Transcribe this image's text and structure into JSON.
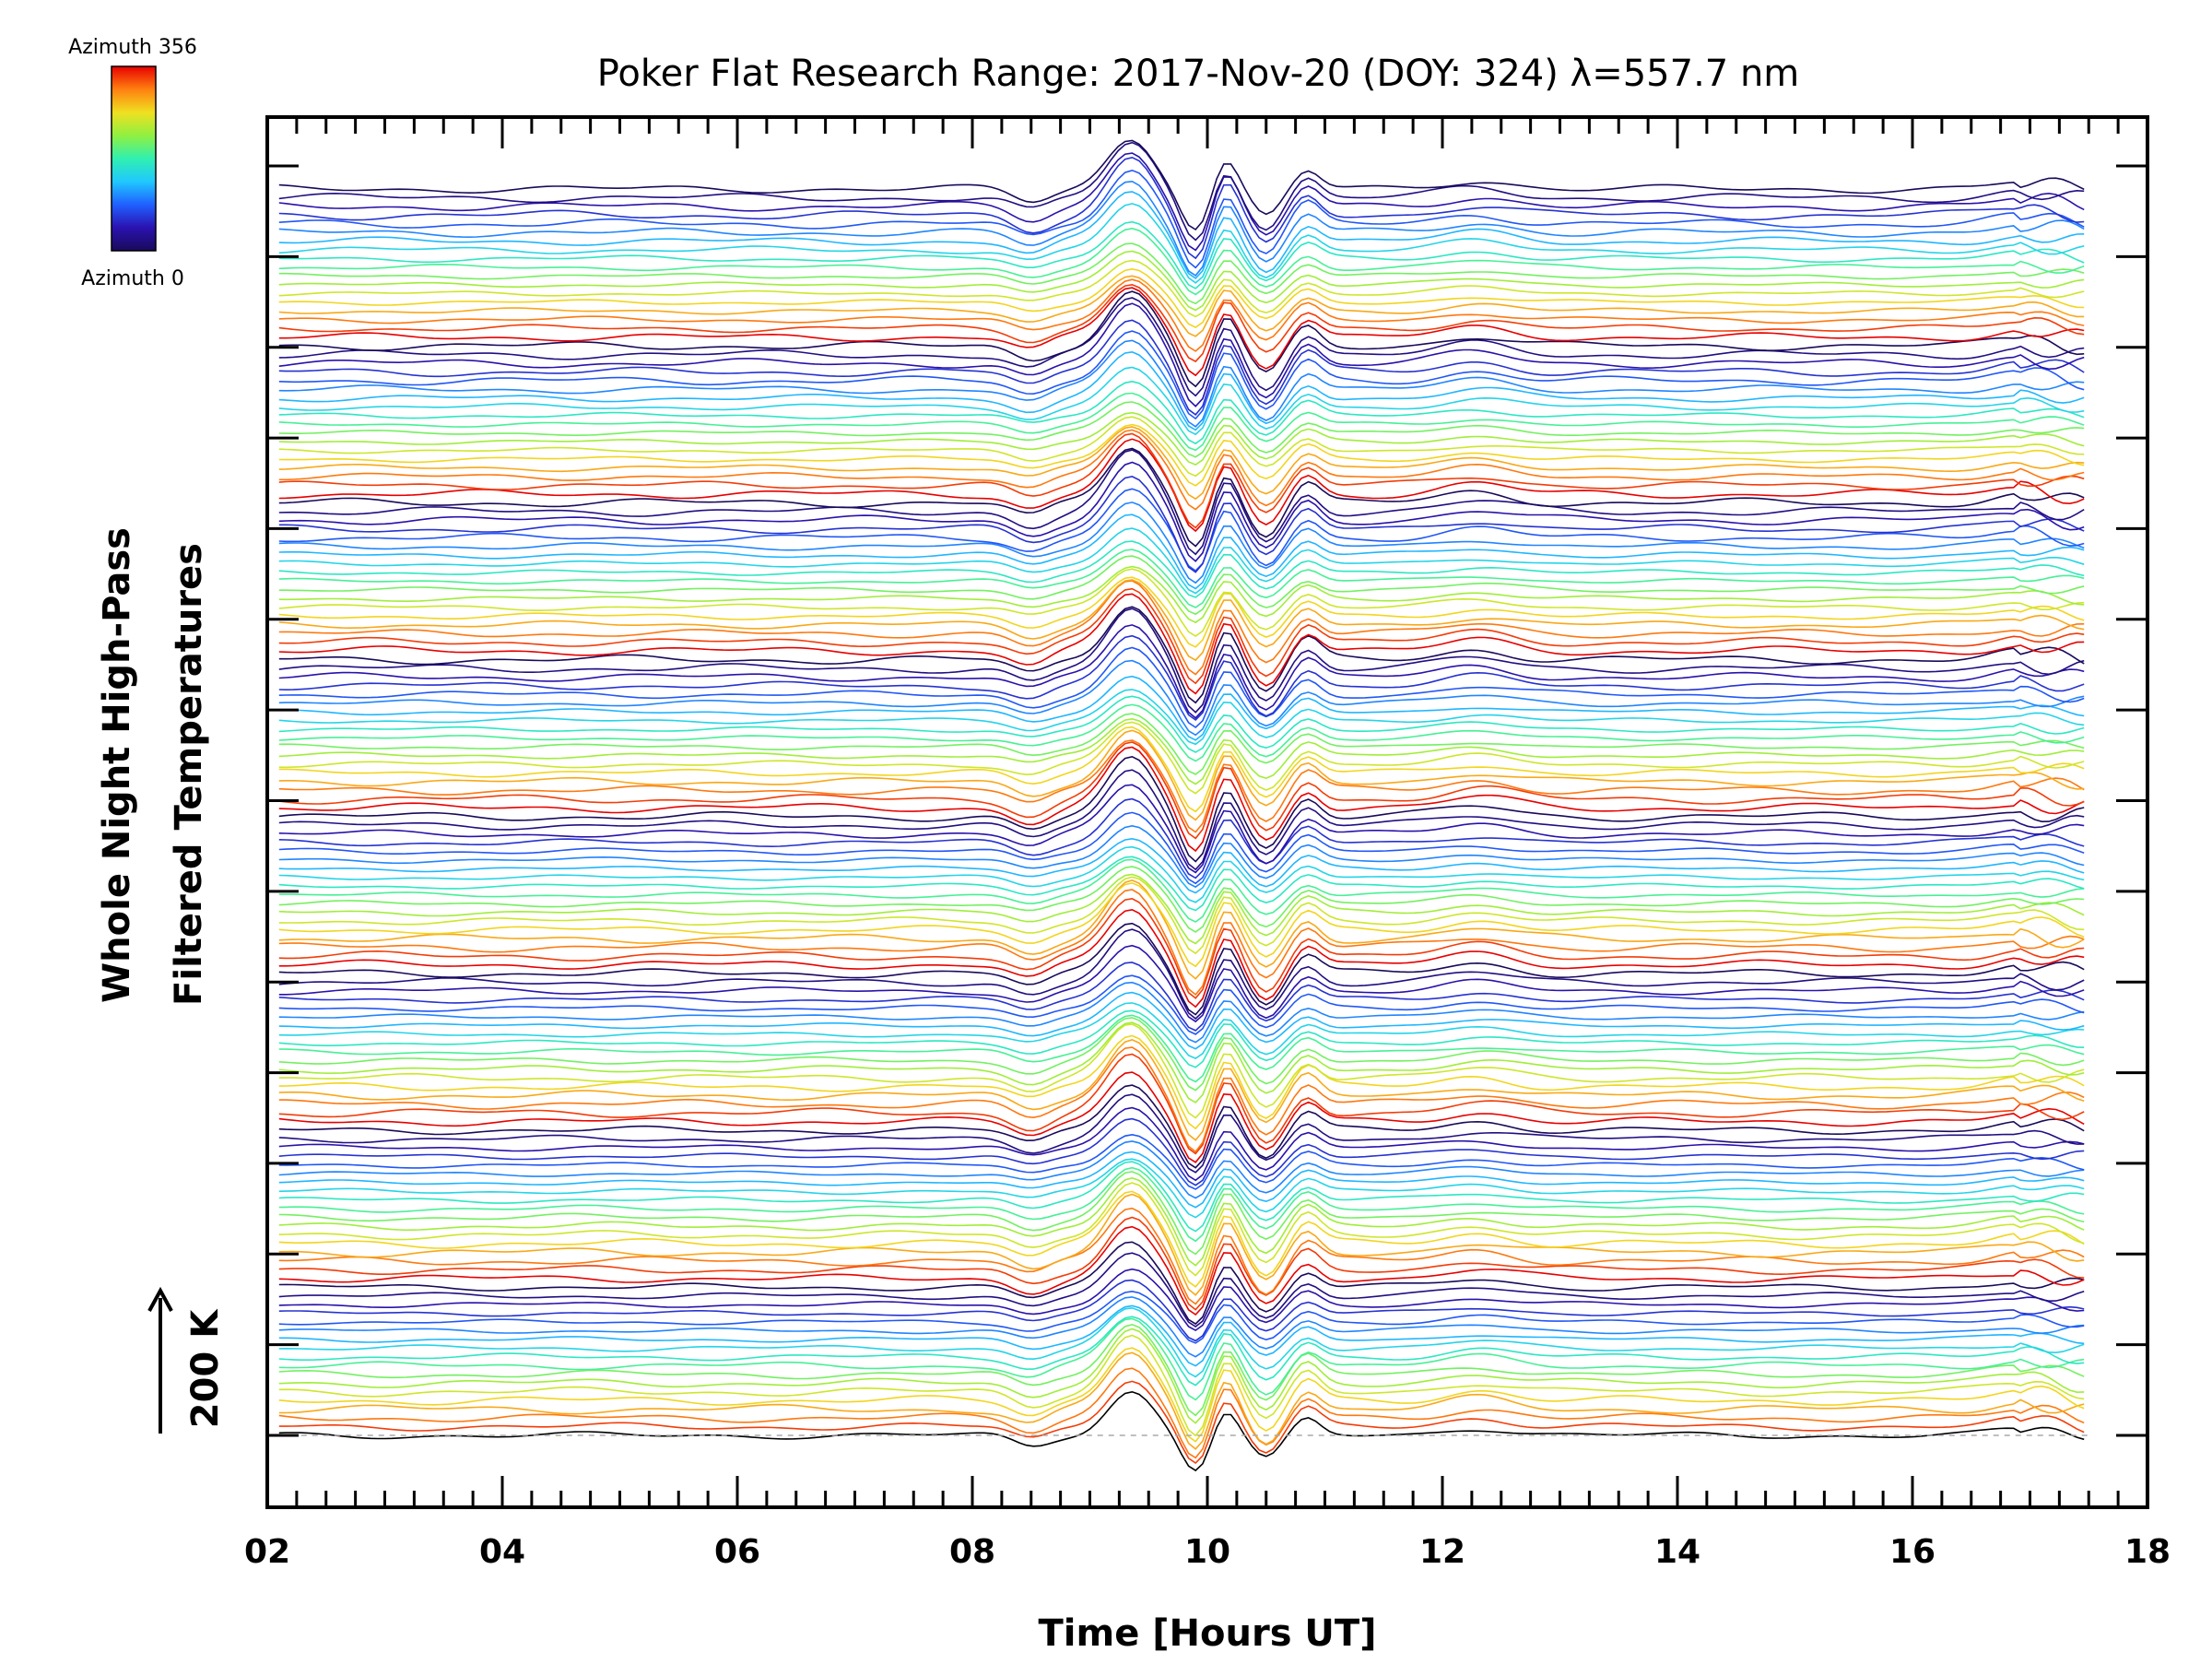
{
  "chart_data": {
    "type": "line",
    "title": "Poker Flat Research Range: 2017-Nov-20 (DOY: 324) λ=557.7 nm",
    "xlabel": "Time [Hours UT]",
    "ylabel": [
      "Whole Night High-Pass",
      "Filtered Temperatures"
    ],
    "xlim": [
      2,
      18
    ],
    "x_ticks": [
      "02",
      "04",
      "06",
      "08",
      "10",
      "12",
      "14",
      "16",
      "18"
    ],
    "x_range": [
      2.1,
      17.5
    ],
    "scale_bar": {
      "label": "200 K",
      "value": 200
    },
    "colorbar": {
      "top_label": "Azimuth 356",
      "bottom_label": "Azimuth 0",
      "colors": [
        "#1a0a5a",
        "#2a12b0",
        "#2060ff",
        "#20c8ff",
        "#30f0b0",
        "#90f040",
        "#f0e020",
        "#ff8010",
        "#e80000"
      ]
    },
    "baseline_color": "#aaaaaa",
    "series_groups": 8,
    "series_per_group": 18,
    "event": [
      {
        "x": 9.35,
        "amplitude": 1.0,
        "width": 0.28
      },
      {
        "x": 9.9,
        "amplitude": -0.8,
        "width": 0.17
      },
      {
        "x": 10.15,
        "amplitude": 0.6,
        "width": 0.14
      },
      {
        "x": 10.5,
        "amplitude": -0.55,
        "width": 0.17
      },
      {
        "x": 10.85,
        "amplitude": 0.35,
        "width": 0.15
      },
      {
        "x": 8.5,
        "amplitude": -0.25,
        "width": 0.22
      },
      {
        "x": 12.3,
        "amplitude": 0.18,
        "width": 0.4
      },
      {
        "x": 16.9,
        "amplitude": 0.12,
        "width": 0.3
      }
    ]
  }
}
